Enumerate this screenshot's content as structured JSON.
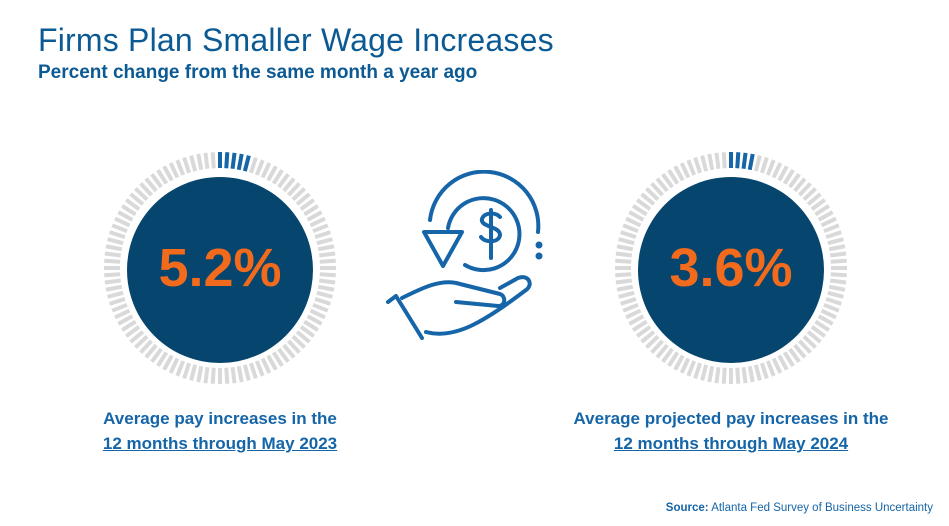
{
  "title": "Firms Plan Smaller Wage Increases",
  "subtitle": "Percent change from the same month a year ago",
  "colors": {
    "title": "#0c5a94",
    "circle": "#06456e",
    "value": "#f26b1d",
    "tick_active": "#1565a8",
    "tick_inactive": "#d9d9d9"
  },
  "gauges": [
    {
      "value_label": "5.2%",
      "value": 5.2,
      "caption_line1": "Average pay increases in the",
      "caption_line2": "12 months through May 2023"
    },
    {
      "value_label": "3.6%",
      "value": 3.6,
      "caption_line1": "Average projected pay increases in the",
      "caption_line2": "12 months through May 2024"
    }
  ],
  "center_icon": "hand-dollar-refund-icon",
  "source": {
    "label": "Source:",
    "text": "Atlanta Fed Survey of Business Uncertainty"
  }
}
